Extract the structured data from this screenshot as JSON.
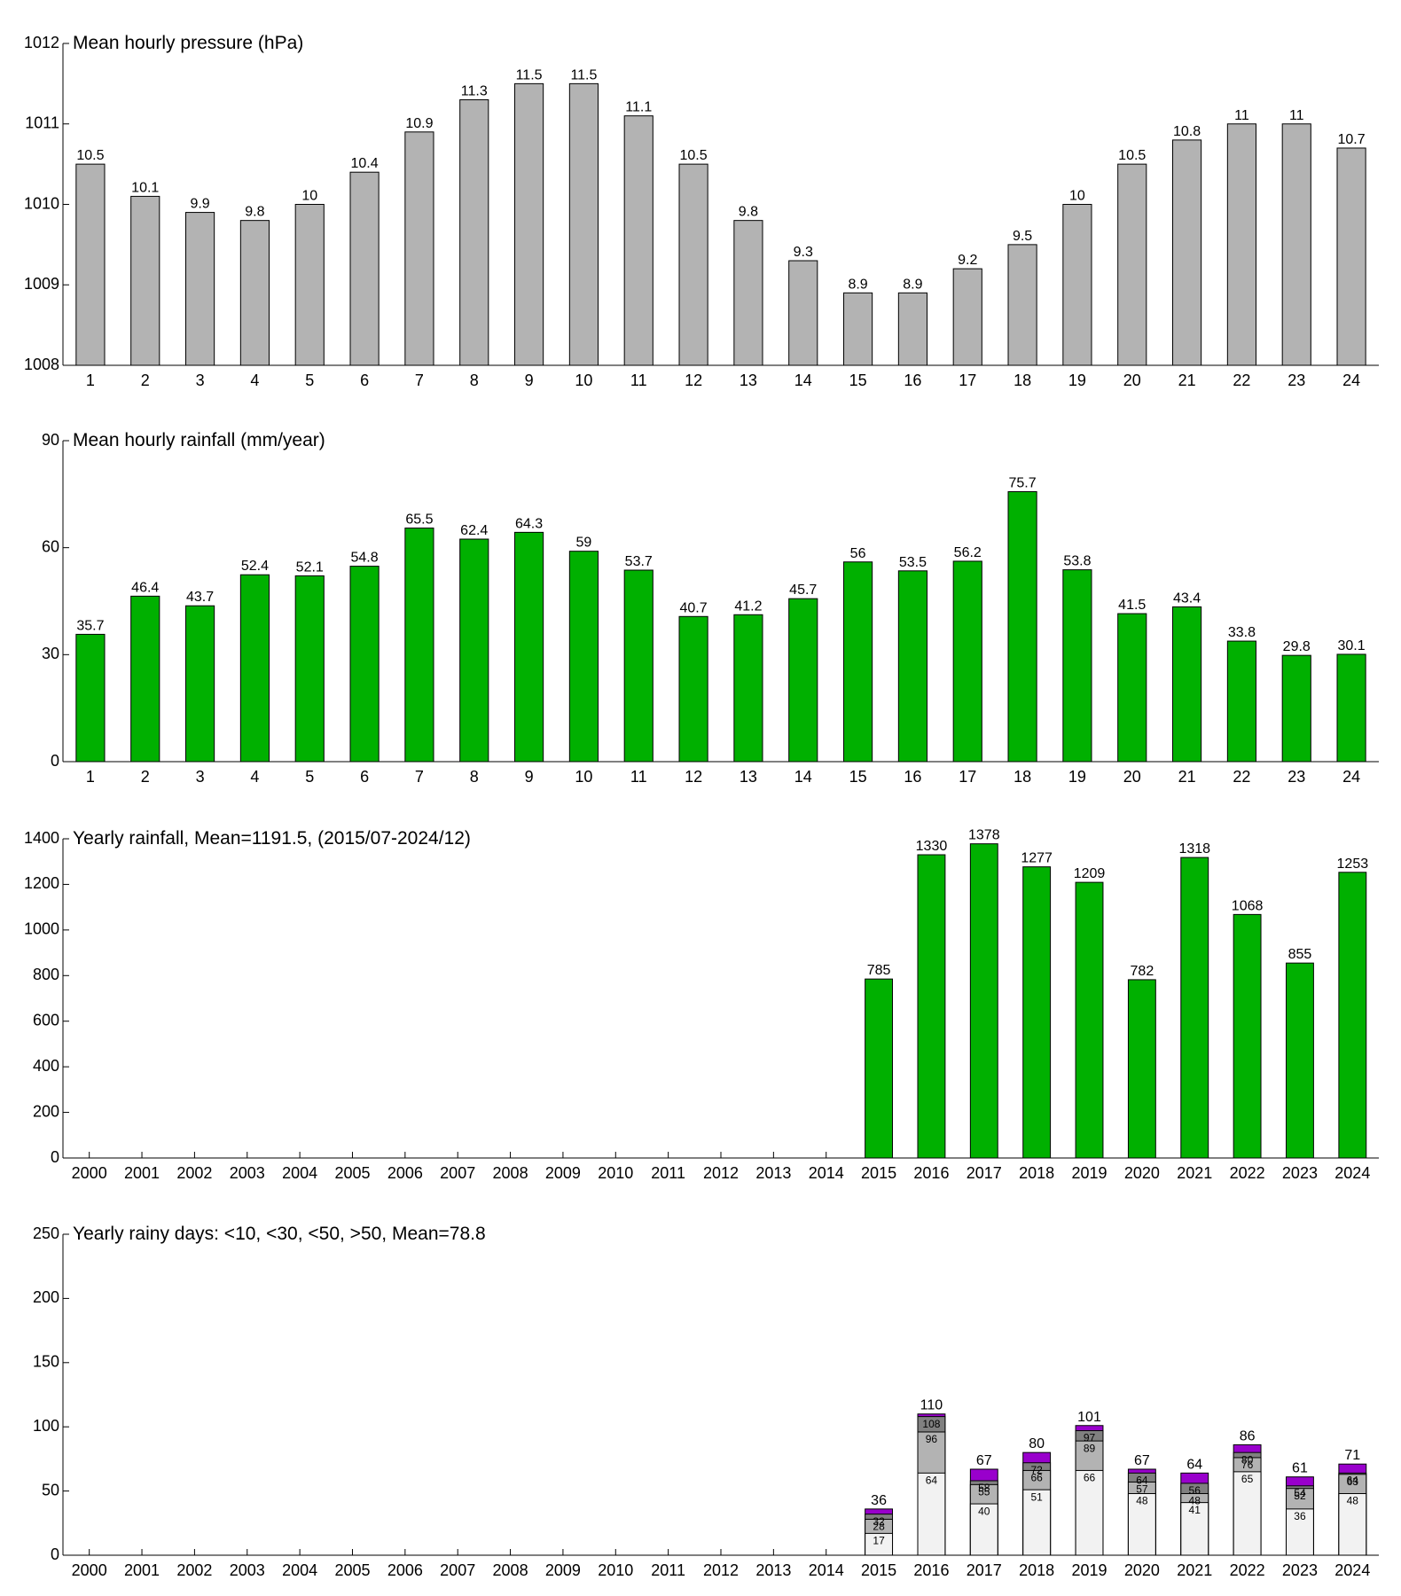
{
  "chart_data": [
    {
      "type": "bar",
      "title": "Mean hourly pressure (hPa)",
      "color": "#b3b3b3",
      "categories": [
        "1",
        "2",
        "3",
        "4",
        "5",
        "6",
        "7",
        "8",
        "9",
        "10",
        "11",
        "12",
        "13",
        "14",
        "15",
        "16",
        "17",
        "18",
        "19",
        "20",
        "21",
        "22",
        "23",
        "24"
      ],
      "values": [
        1010.5,
        1010.1,
        1009.9,
        1009.8,
        1010.0,
        1010.4,
        1010.9,
        1011.3,
        1011.5,
        1011.5,
        1011.1,
        1010.5,
        1009.8,
        1009.3,
        1008.9,
        1008.9,
        1009.2,
        1009.5,
        1010.0,
        1010.5,
        1010.8,
        1011.0,
        1011.0,
        1010.7
      ],
      "value_labels": [
        "10.5",
        "10.1",
        "9.9",
        "9.8",
        "10",
        "10.4",
        "10.9",
        "11.3",
        "11.5",
        "11.5",
        "11.1",
        "10.5",
        "9.8",
        "9.3",
        "8.9",
        "8.9",
        "9.2",
        "9.5",
        "10",
        "10.5",
        "10.8",
        "11",
        "11",
        "10.7"
      ],
      "ylim": [
        1008,
        1012
      ],
      "yticks": [
        1008,
        1009,
        1010,
        1011,
        1012
      ]
    },
    {
      "type": "bar",
      "title": "Mean hourly rainfall (mm/year)",
      "color": "#00b000",
      "categories": [
        "1",
        "2",
        "3",
        "4",
        "5",
        "6",
        "7",
        "8",
        "9",
        "10",
        "11",
        "12",
        "13",
        "14",
        "15",
        "16",
        "17",
        "18",
        "19",
        "20",
        "21",
        "22",
        "23",
        "24"
      ],
      "values": [
        35.7,
        46.4,
        43.7,
        52.4,
        52.1,
        54.8,
        65.5,
        62.4,
        64.3,
        59,
        53.7,
        40.7,
        41.2,
        45.7,
        56,
        53.5,
        56.2,
        75.7,
        53.8,
        41.5,
        43.4,
        33.8,
        29.8,
        30.1
      ],
      "ylim": [
        0,
        90
      ],
      "yticks": [
        0,
        30,
        60,
        90
      ]
    },
    {
      "type": "bar",
      "title": "Yearly rainfall, Mean=1191.5, (2015/07-2024/12)",
      "color": "#00b000",
      "categories": [
        "2000",
        "2001",
        "2002",
        "2003",
        "2004",
        "2005",
        "2006",
        "2007",
        "2008",
        "2009",
        "2010",
        "2011",
        "2012",
        "2013",
        "2014",
        "2015",
        "2016",
        "2017",
        "2018",
        "2019",
        "2020",
        "2021",
        "2022",
        "2023",
        "2024"
      ],
      "values": [
        null,
        null,
        null,
        null,
        null,
        null,
        null,
        null,
        null,
        null,
        null,
        null,
        null,
        null,
        null,
        785,
        1330,
        1378,
        1277,
        1209,
        782,
        1318,
        1068,
        855,
        1253
      ],
      "ylim": [
        0,
        1400
      ],
      "yticks": [
        0,
        200,
        400,
        600,
        800,
        1000,
        1200,
        1400
      ]
    },
    {
      "type": "overlap_bar",
      "title": "Yearly rainy days: <10, <30, <50, >50, Mean=78.8",
      "categories": [
        "2000",
        "2001",
        "2002",
        "2003",
        "2004",
        "2005",
        "2006",
        "2007",
        "2008",
        "2009",
        "2010",
        "2011",
        "2012",
        "2013",
        "2014",
        "2015",
        "2016",
        "2017",
        "2018",
        "2019",
        "2020",
        "2021",
        "2022",
        "2023",
        "2024"
      ],
      "series": [
        {
          "name": "<10",
          "color": "#f2f2f2",
          "values": [
            null,
            null,
            null,
            null,
            null,
            null,
            null,
            null,
            null,
            null,
            null,
            null,
            null,
            null,
            null,
            17,
            64,
            40,
            51,
            66,
            48,
            41,
            65,
            36,
            48
          ]
        },
        {
          "name": "<30",
          "color": "#b3b3b3",
          "values": [
            null,
            null,
            null,
            null,
            null,
            null,
            null,
            null,
            null,
            null,
            null,
            null,
            null,
            null,
            null,
            28,
            96,
            55,
            66,
            89,
            57,
            48,
            76,
            52,
            63
          ]
        },
        {
          "name": "<50",
          "color": "#808080",
          "values": [
            null,
            null,
            null,
            null,
            null,
            null,
            null,
            null,
            null,
            null,
            null,
            null,
            null,
            null,
            null,
            32,
            108,
            58,
            72,
            97,
            64,
            56,
            80,
            54,
            64
          ]
        },
        {
          "name": ">50",
          "color": "#9900cc",
          "values": [
            null,
            null,
            null,
            null,
            null,
            null,
            null,
            null,
            null,
            null,
            null,
            null,
            null,
            null,
            null,
            36,
            110,
            67,
            80,
            101,
            67,
            64,
            86,
            61,
            71
          ]
        }
      ],
      "ylim": [
        0,
        250
      ],
      "yticks": [
        0,
        50,
        100,
        150,
        200,
        250
      ]
    }
  ]
}
